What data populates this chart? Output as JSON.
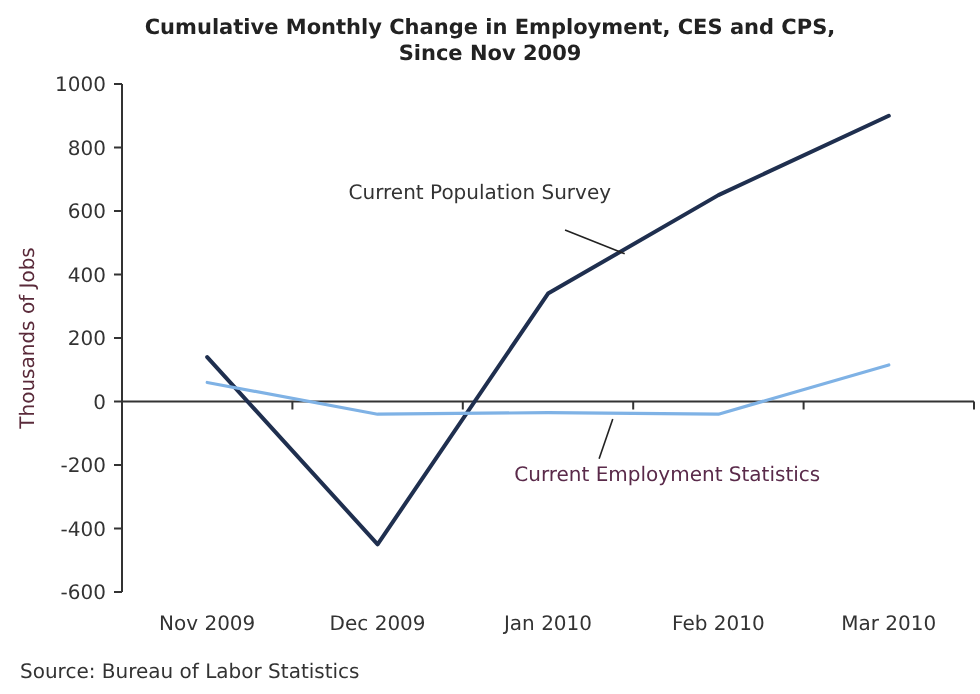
{
  "chart_data": {
    "type": "line",
    "title": "Cumulative Monthly Change in Employment, CES and CPS,\nSince Nov 2009",
    "ylabel": "Thousands of Jobs",
    "categories": [
      "Nov 2009",
      "Dec 2009",
      "Jan 2010",
      "Feb 2010",
      "Mar 2010"
    ],
    "series": [
      {
        "name": "Current Population Survey",
        "color": "#1f2f4f",
        "values": [
          140,
          -450,
          340,
          650,
          900
        ]
      },
      {
        "name": "Current Employment Statistics",
        "color": "#7fb2e5",
        "values": [
          60,
          -40,
          -35,
          -40,
          115
        ]
      }
    ],
    "ylim": [
      -600,
      1000
    ],
    "yticks": [
      -600,
      -400,
      -200,
      0,
      200,
      400,
      600,
      800,
      1000
    ],
    "marker": "none",
    "line_style": "solid",
    "annotations": [
      "Source: Bureau of Labor Statistics"
    ]
  }
}
